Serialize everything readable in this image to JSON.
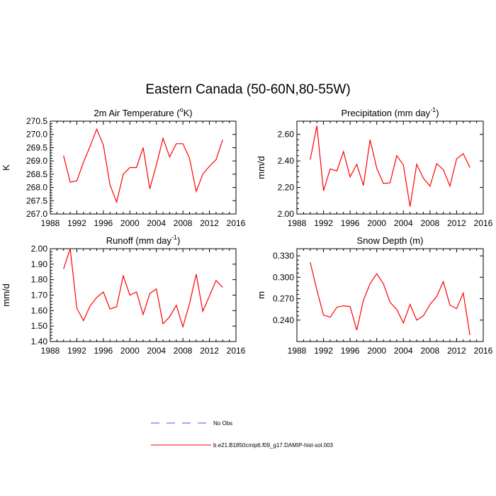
{
  "title": "Eastern Canada (50-60N,80-55W)",
  "colors": {
    "model": "#ff0000",
    "obs": "#4d4dff",
    "axis": "#000000"
  },
  "legend": [
    {
      "label": "No Obs",
      "style": "dashed",
      "color": "#4d4dff"
    },
    {
      "label": "b.e21.B1850cmip6.f09_g17.DAMIP-hist-sol.003",
      "style": "solid",
      "color": "#ff0000"
    }
  ],
  "chart_data": [
    {
      "type": "line",
      "title": "2m Air Temperature (°K)",
      "title_parts": [
        "2m Air Temperature (",
        "o",
        "K)"
      ],
      "ylabel": "K",
      "xlim": [
        1988,
        2016
      ],
      "xticks": [
        1988,
        1992,
        1996,
        2000,
        2004,
        2008,
        2012,
        2016
      ],
      "ylim": [
        267.0,
        270.5
      ],
      "yticks": [
        "267.0",
        "267.5",
        "268.0",
        "268.5",
        "269.0",
        "269.5",
        "270.0",
        "270.5"
      ],
      "series": [
        {
          "color": "#ff0000",
          "x": [
            1990,
            1991,
            1992,
            1993,
            1994,
            1995,
            1996,
            1997,
            1998,
            1999,
            2000,
            2001,
            2002,
            2003,
            2004,
            2005,
            2006,
            2007,
            2008,
            2009,
            2010,
            2011,
            2012,
            2013,
            2014
          ],
          "values": [
            269.2,
            268.2,
            268.25,
            268.95,
            269.55,
            270.2,
            269.6,
            268.1,
            267.45,
            268.5,
            268.75,
            268.75,
            269.5,
            267.95,
            268.85,
            269.85,
            269.15,
            269.65,
            269.65,
            269.1,
            267.85,
            268.5,
            268.8,
            269.05,
            269.8
          ]
        }
      ]
    },
    {
      "type": "line",
      "title": "Precipitation (mm day-1)",
      "title_parts": [
        "Precipitation (mm day",
        "-1",
        ")"
      ],
      "ylabel": "mm/d",
      "xlim": [
        1988,
        2016
      ],
      "xticks": [
        1988,
        1992,
        1996,
        2000,
        2004,
        2008,
        2012,
        2016
      ],
      "ylim": [
        2.0,
        2.7
      ],
      "yticks": [
        "2.00",
        "2.20",
        "2.40",
        "2.60"
      ],
      "series": [
        {
          "color": "#ff0000",
          "x": [
            1990,
            1991,
            1992,
            1993,
            1994,
            1995,
            1996,
            1997,
            1998,
            1999,
            2000,
            2001,
            2002,
            2003,
            2004,
            2005,
            2006,
            2007,
            2008,
            2009,
            2010,
            2011,
            2012,
            2013,
            2014
          ],
          "values": [
            2.41,
            2.665,
            2.175,
            2.34,
            2.325,
            2.47,
            2.28,
            2.375,
            2.215,
            2.56,
            2.345,
            2.23,
            2.235,
            2.44,
            2.37,
            2.055,
            2.375,
            2.27,
            2.21,
            2.38,
            2.335,
            2.21,
            2.415,
            2.455,
            2.35
          ]
        }
      ]
    },
    {
      "type": "line",
      "title": "Runoff (mm day-1)",
      "title_parts": [
        "Runoff (mm day",
        "-1",
        ")"
      ],
      "ylabel": "mm/d",
      "xlim": [
        1988,
        2016
      ],
      "xticks": [
        1988,
        1992,
        1996,
        2000,
        2004,
        2008,
        2012,
        2016
      ],
      "ylim": [
        1.4,
        2.0
      ],
      "yticks": [
        "1.40",
        "1.50",
        "1.60",
        "1.70",
        "1.80",
        "1.90",
        "2.00"
      ],
      "series": [
        {
          "color": "#ff0000",
          "x": [
            1990,
            1991,
            1992,
            1993,
            1994,
            1995,
            1996,
            1997,
            1998,
            1999,
            2000,
            2001,
            2002,
            2003,
            2004,
            2005,
            2006,
            2007,
            2008,
            2009,
            2010,
            2011,
            2012,
            2013,
            2014
          ],
          "values": [
            1.87,
            2.0,
            1.615,
            1.535,
            1.63,
            1.685,
            1.72,
            1.61,
            1.625,
            1.825,
            1.7,
            1.72,
            1.575,
            1.71,
            1.74,
            1.515,
            1.56,
            1.635,
            1.495,
            1.645,
            1.835,
            1.595,
            1.695,
            1.795,
            1.75
          ]
        }
      ]
    },
    {
      "type": "line",
      "title": "Snow Depth (m)",
      "title_parts": [
        "Snow Depth (m)"
      ],
      "ylabel": "m",
      "xlim": [
        1988,
        2016
      ],
      "xticks": [
        1988,
        1992,
        1996,
        2000,
        2004,
        2008,
        2012,
        2016
      ],
      "ylim": [
        0.21,
        0.34
      ],
      "yticks": [
        "0.240",
        "0.270",
        "0.300",
        "0.330"
      ],
      "series": [
        {
          "color": "#ff0000",
          "x": [
            1990,
            1991,
            1992,
            1993,
            1994,
            1995,
            1996,
            1997,
            1998,
            1999,
            2000,
            2001,
            2002,
            2003,
            2004,
            2005,
            2006,
            2007,
            2008,
            2009,
            2010,
            2011,
            2012,
            2013,
            2014
          ],
          "values": [
            0.321,
            0.282,
            0.247,
            0.244,
            0.258,
            0.26,
            0.259,
            0.226,
            0.268,
            0.291,
            0.305,
            0.291,
            0.265,
            0.255,
            0.236,
            0.262,
            0.24,
            0.246,
            0.262,
            0.273,
            0.294,
            0.261,
            0.256,
            0.278,
            0.219
          ]
        }
      ]
    }
  ]
}
